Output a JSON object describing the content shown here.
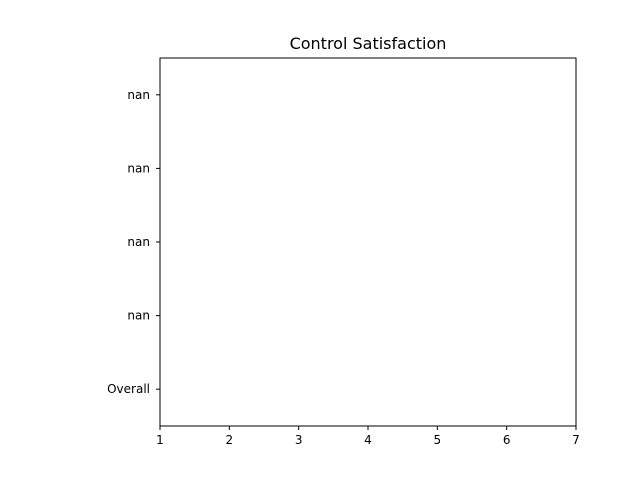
{
  "chart_data": {
    "type": "bar",
    "title": "Control Satisfaction",
    "xlabel": "",
    "ylabel": "",
    "orientation": "horizontal",
    "categories": [
      "Overall",
      "nan",
      "nan",
      "nan",
      "nan"
    ],
    "values": [
      null,
      null,
      null,
      null,
      null
    ],
    "xlim": [
      1,
      7
    ],
    "x_ticks": [
      1,
      2,
      3,
      4,
      5,
      6,
      7
    ],
    "grid": false,
    "legend": "none"
  }
}
